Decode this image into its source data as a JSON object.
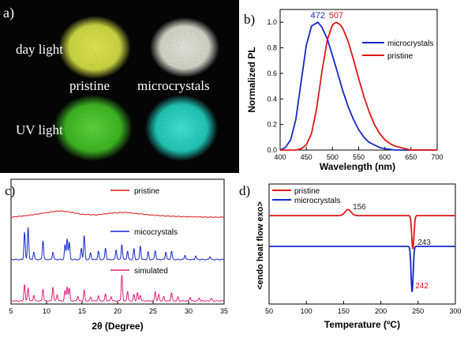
{
  "panel_a": {
    "label": "a)",
    "day_light": "day light",
    "uv_light": "UV light",
    "pristine": "pristine",
    "microcrystals": "microcrystals",
    "colors": {
      "background": "#050505",
      "pristine_day": "#dde84a",
      "micro_day": "#e6e8dc",
      "pristine_uv": "#4ecb2e",
      "micro_uv": "#2ee0d0"
    }
  },
  "chart_data": [
    {
      "type": "line",
      "panel_label": "b)",
      "xlabel": "Wavelength (nm)",
      "ylabel": "Normalized PL",
      "xlim": [
        400,
        700
      ],
      "ylim": [
        0,
        1.1
      ],
      "xticks": [
        400,
        450,
        500,
        550,
        600,
        650,
        700
      ],
      "yticks": [
        0.0,
        0.2,
        0.4,
        0.6,
        0.8,
        1.0
      ],
      "legend_position": "top-right",
      "series": [
        {
          "name": "microcrystals",
          "color": "#1428c8",
          "x": [
            400,
            410,
            420,
            430,
            440,
            450,
            460,
            472,
            480,
            490,
            500,
            510,
            520,
            530,
            540,
            550,
            560,
            570,
            580,
            590,
            600,
            610,
            620,
            630,
            640,
            650,
            660,
            680,
            700
          ],
          "y": [
            0.0,
            0.02,
            0.08,
            0.24,
            0.53,
            0.82,
            0.97,
            1.0,
            0.96,
            0.87,
            0.74,
            0.6,
            0.46,
            0.34,
            0.24,
            0.16,
            0.1,
            0.06,
            0.04,
            0.02,
            0.01,
            0.005,
            0.0,
            0.0,
            0.0,
            0.0,
            0.0,
            0.0,
            0.0
          ]
        },
        {
          "name": "pristine",
          "color": "#e01818",
          "x": [
            400,
            430,
            440,
            450,
            460,
            470,
            480,
            490,
            500,
            507,
            515,
            520,
            530,
            540,
            550,
            560,
            570,
            580,
            590,
            600,
            610,
            620,
            630,
            640,
            650,
            660,
            680,
            700
          ],
          "y": [
            0.0,
            0.0,
            0.01,
            0.04,
            0.13,
            0.33,
            0.62,
            0.86,
            0.98,
            1.0,
            0.98,
            0.95,
            0.85,
            0.71,
            0.56,
            0.42,
            0.3,
            0.2,
            0.13,
            0.08,
            0.05,
            0.03,
            0.02,
            0.01,
            0.0,
            0.0,
            0.0,
            0.0
          ]
        }
      ],
      "annotations": [
        {
          "text": "472",
          "x": 472,
          "color": "#1428c8"
        },
        {
          "text": "507",
          "x": 507,
          "color": "#e01818"
        }
      ]
    },
    {
      "type": "line",
      "panel_label": "c)",
      "xlabel": "2θ (Degree)",
      "xlim": [
        5,
        35
      ],
      "xticks": [
        5,
        10,
        15,
        20,
        25,
        30,
        35
      ],
      "legend_position": "inline",
      "series": [
        {
          "name": "pristine",
          "color": "#e01818",
          "offset": 2.0,
          "x": [
            5,
            7,
            9,
            11,
            12,
            13,
            15,
            17,
            19,
            21,
            23,
            25,
            27,
            29,
            31,
            33,
            35
          ],
          "y": [
            0.0,
            0.05,
            0.12,
            0.2,
            0.22,
            0.19,
            0.1,
            0.08,
            0.14,
            0.17,
            0.12,
            0.07,
            0.04,
            0.02,
            0.01,
            0.0,
            0.0
          ]
        },
        {
          "name": "micocrystals",
          "color": "#1428c8",
          "offset": 1.0,
          "baseline": 0.05,
          "peaks": [
            [
              6.9,
              0.72
            ],
            [
              7.4,
              0.85
            ],
            [
              8.2,
              0.2
            ],
            [
              9.5,
              0.5
            ],
            [
              10.9,
              0.2
            ],
            [
              12.6,
              0.38
            ],
            [
              12.9,
              0.55
            ],
            [
              13.2,
              0.45
            ],
            [
              14.9,
              0.3
            ],
            [
              15.3,
              0.62
            ],
            [
              16.2,
              0.18
            ],
            [
              17.3,
              0.22
            ],
            [
              18.3,
              0.3
            ],
            [
              19.8,
              0.26
            ],
            [
              20.6,
              0.4
            ],
            [
              21.4,
              0.22
            ],
            [
              22.3,
              0.28
            ],
            [
              23.2,
              0.36
            ],
            [
              24.3,
              0.2
            ],
            [
              25.3,
              0.24
            ],
            [
              26.8,
              0.2
            ],
            [
              27.6,
              0.22
            ],
            [
              29.5,
              0.12
            ],
            [
              31.0,
              0.1
            ],
            [
              33.0,
              0.08
            ]
          ]
        },
        {
          "name": "simulated",
          "color": "#e0207a",
          "offset": 0.0,
          "baseline": 0.0,
          "peaks": [
            [
              6.9,
              0.52
            ],
            [
              7.4,
              0.42
            ],
            [
              8.2,
              0.18
            ],
            [
              9.5,
              0.38
            ],
            [
              10.9,
              0.44
            ],
            [
              11.5,
              0.2
            ],
            [
              12.6,
              0.32
            ],
            [
              12.9,
              0.45
            ],
            [
              13.2,
              0.4
            ],
            [
              14.4,
              0.15
            ],
            [
              15.3,
              0.34
            ],
            [
              16.2,
              0.12
            ],
            [
              17.3,
              0.16
            ],
            [
              18.3,
              0.22
            ],
            [
              19.1,
              0.14
            ],
            [
              20.6,
              0.82
            ],
            [
              21.4,
              0.3
            ],
            [
              22.3,
              0.2
            ],
            [
              22.8,
              0.26
            ],
            [
              23.2,
              0.18
            ],
            [
              25.3,
              0.3
            ],
            [
              25.8,
              0.2
            ],
            [
              26.5,
              0.14
            ],
            [
              27.6,
              0.26
            ],
            [
              28.5,
              0.12
            ],
            [
              30.2,
              0.12
            ],
            [
              31.5,
              0.1
            ],
            [
              33.2,
              0.08
            ]
          ]
        }
      ]
    },
    {
      "type": "line",
      "panel_label": "d)",
      "xlabel": "Temperature (ºC)",
      "ylabel": "<endo  heat flow  exo>",
      "xlim": [
        50,
        300
      ],
      "xticks": [
        50,
        100,
        150,
        200,
        250,
        300
      ],
      "legend_position": "top-left",
      "series": [
        {
          "name": "pristine",
          "color": "#e01818",
          "baseline": 0.0,
          "peaks": [
            [
              156,
              0.18,
              4
            ],
            [
              243,
              -1.0,
              1.5
            ]
          ]
        },
        {
          "name": "microcrystals",
          "color": "#1428c8",
          "baseline": 0.0,
          "peaks": [
            [
              242,
              -1.3,
              1.4
            ]
          ]
        }
      ],
      "annotations": [
        {
          "text": "156",
          "x": 156,
          "color": "#222222"
        },
        {
          "text": "243",
          "x": 243,
          "color": "#222222"
        },
        {
          "text": "242",
          "x": 242,
          "color": "#e01818"
        }
      ]
    }
  ]
}
